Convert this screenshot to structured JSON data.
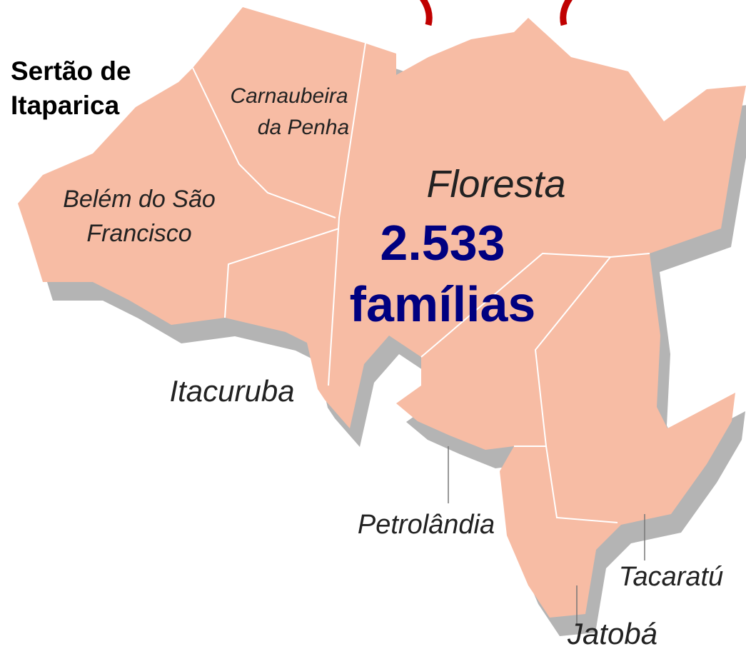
{
  "region": {
    "title_lines": [
      "Sertão de",
      "Itaparica"
    ]
  },
  "municipalities": [
    {
      "label_lines": [
        "Carnaubeira",
        "da Penha"
      ]
    },
    {
      "label_lines": [
        "Belém do São",
        "Francisco"
      ]
    },
    {
      "label_lines": [
        "Floresta"
      ]
    },
    {
      "label_lines": [
        "Itacuruba"
      ]
    },
    {
      "label_lines": [
        "Petrolândia"
      ]
    },
    {
      "label_lines": [
        "Tacaratú"
      ]
    },
    {
      "label_lines": [
        "Jatobá"
      ]
    }
  ],
  "highlight": {
    "count": "2.533",
    "unit": "famílias"
  }
}
